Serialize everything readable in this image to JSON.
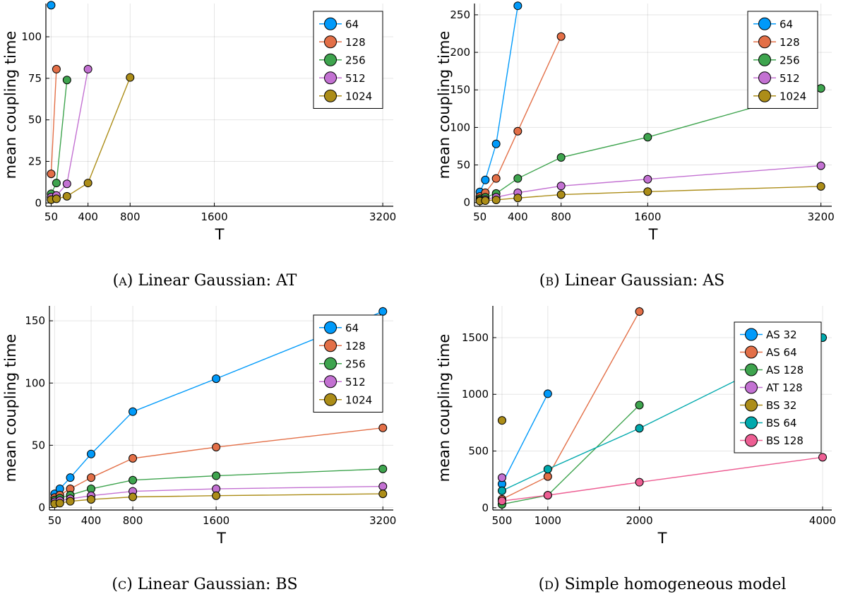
{
  "chart_data": [
    {
      "id": "a",
      "type": "line",
      "caption_letter": "A",
      "caption_text": "Linear Gaussian: AT",
      "xlabel": "T",
      "ylabel": "mean coupling time",
      "xticks": [
        50,
        400,
        800,
        1600,
        3200
      ],
      "xtick_labels": [
        "50",
        "400",
        "800",
        "1600",
        "3200"
      ],
      "yticks": [
        0,
        25,
        50,
        75,
        100
      ],
      "ytick_labels": [
        "0",
        "25",
        "50",
        "75",
        "100"
      ],
      "xlim": [
        0,
        3300
      ],
      "ylim": [
        -2,
        120
      ],
      "legend_position": "top-right",
      "series": [
        {
          "name": "64",
          "color": "#009AFA",
          "x": [
            50
          ],
          "y": [
            119
          ]
        },
        {
          "name": "128",
          "color": "#E36F47",
          "x": [
            50,
            100
          ],
          "y": [
            17.5,
            80.5
          ]
        },
        {
          "name": "256",
          "color": "#3EA44E",
          "x": [
            50,
            100,
            200
          ],
          "y": [
            5.5,
            12,
            74
          ]
        },
        {
          "name": "512",
          "color": "#C371D2",
          "x": [
            50,
            100,
            200,
            400
          ],
          "y": [
            3.5,
            4.5,
            11.5,
            80.5
          ]
        },
        {
          "name": "1024",
          "color": "#AC8D18",
          "x": [
            50,
            100,
            200,
            400,
            800
          ],
          "y": [
            2,
            2.5,
            4,
            12,
            75.5
          ]
        }
      ]
    },
    {
      "id": "b",
      "type": "line",
      "caption_letter": "B",
      "caption_text": "Linear Gaussian: AS",
      "xlabel": "T",
      "ylabel": "mean coupling time",
      "xticks": [
        50,
        400,
        800,
        1600,
        3200
      ],
      "xtick_labels": [
        "50",
        "400",
        "800",
        "1600",
        "3200"
      ],
      "yticks": [
        0,
        50,
        100,
        150,
        200,
        250
      ],
      "ytick_labels": [
        "0",
        "50",
        "100",
        "150",
        "200",
        "250"
      ],
      "xlim": [
        0,
        3300
      ],
      "ylim": [
        -5,
        265
      ],
      "legend_position": "top-right",
      "series": [
        {
          "name": "64",
          "color": "#009AFA",
          "x": [
            50,
            100,
            200,
            400
          ],
          "y": [
            14,
            30,
            78,
            262
          ]
        },
        {
          "name": "128",
          "color": "#E36F47",
          "x": [
            50,
            100,
            200,
            400,
            800
          ],
          "y": [
            8,
            13,
            32,
            95,
            221
          ]
        },
        {
          "name": "256",
          "color": "#3EA44E",
          "x": [
            50,
            100,
            200,
            400,
            800,
            1600,
            3200
          ],
          "y": [
            5,
            7,
            12,
            32,
            60,
            87,
            152
          ]
        },
        {
          "name": "512",
          "color": "#C371D2",
          "x": [
            50,
            100,
            200,
            400,
            800,
            1600,
            3200
          ],
          "y": [
            3,
            4,
            7,
            13,
            22,
            31,
            49
          ]
        },
        {
          "name": "1024",
          "color": "#AC8D18",
          "x": [
            50,
            100,
            200,
            400,
            800,
            1600,
            3200
          ],
          "y": [
            2,
            2.5,
            3.5,
            6,
            10.5,
            14.5,
            21.5
          ]
        }
      ]
    },
    {
      "id": "c",
      "type": "line",
      "caption_letter": "C",
      "caption_text": "Linear Gaussian: BS",
      "xlabel": "T",
      "ylabel": "mean coupling time",
      "xticks": [
        50,
        400,
        800,
        1600,
        3200
      ],
      "xtick_labels": [
        "50",
        "400",
        "800",
        "1600",
        "3200"
      ],
      "yticks": [
        0,
        50,
        100,
        150
      ],
      "ytick_labels": [
        "0",
        "50",
        "100",
        "150"
      ],
      "xlim": [
        0,
        3300
      ],
      "ylim": [
        -2,
        162
      ],
      "legend_position": "top-right",
      "series": [
        {
          "name": "64",
          "color": "#009AFA",
          "x": [
            50,
            100,
            200,
            400,
            800,
            1600,
            3200
          ],
          "y": [
            11,
            15,
            24,
            43,
            77,
            103.5,
            157.5
          ]
        },
        {
          "name": "128",
          "color": "#E36F47",
          "x": [
            50,
            100,
            200,
            400,
            800,
            1600,
            3200
          ],
          "y": [
            8,
            10,
            15,
            24,
            39.5,
            48.5,
            64
          ]
        },
        {
          "name": "256",
          "color": "#3EA44E",
          "x": [
            50,
            100,
            200,
            400,
            800,
            1600,
            3200
          ],
          "y": [
            6,
            7.5,
            10,
            15,
            22,
            25.5,
            31
          ]
        },
        {
          "name": "512",
          "color": "#C371D2",
          "x": [
            50,
            100,
            200,
            400,
            800,
            1600,
            3200
          ],
          "y": [
            4.5,
            5.5,
            7,
            9.5,
            13,
            15,
            17
          ]
        },
        {
          "name": "1024",
          "color": "#AC8D18",
          "x": [
            50,
            100,
            200,
            400,
            800,
            1600,
            3200
          ],
          "y": [
            3,
            3.5,
            5,
            6.5,
            8.5,
            9.5,
            11
          ]
        }
      ]
    },
    {
      "id": "d",
      "type": "line",
      "caption_letter": "D",
      "caption_text": "Simple homogeneous model",
      "xlabel": "T",
      "ylabel": "mean coupling time",
      "xticks": [
        500,
        1000,
        2000,
        4000
      ],
      "xtick_labels": [
        "500",
        "1000",
        "2000",
        "4000"
      ],
      "yticks": [
        0,
        500,
        1000,
        1500
      ],
      "ytick_labels": [
        "0",
        "500",
        "1000",
        "1500"
      ],
      "xlim": [
        400,
        4100
      ],
      "ylim": [
        -20,
        1780
      ],
      "legend_position": "top-right",
      "series": [
        {
          "name": "AS 32",
          "color": "#009AFA",
          "x": [
            500,
            1000
          ],
          "y": [
            210,
            1005
          ]
        },
        {
          "name": "AS 64",
          "color": "#E36F47",
          "x": [
            500,
            1000,
            2000
          ],
          "y": [
            75,
            275,
            1730
          ]
        },
        {
          "name": "AS 128",
          "color": "#3EA44E",
          "x": [
            500,
            1000,
            2000
          ],
          "y": [
            30,
            110,
            905
          ]
        },
        {
          "name": "AT 128",
          "color": "#C371D2",
          "x": [
            500
          ],
          "y": [
            265
          ]
        },
        {
          "name": "BS 32",
          "color": "#AC8D18",
          "x": [
            500
          ],
          "y": [
            770
          ]
        },
        {
          "name": "BS 64",
          "color": "#00A9AD",
          "x": [
            500,
            1000,
            2000,
            4000
          ],
          "y": [
            150,
            340,
            700,
            1500
          ]
        },
        {
          "name": "BS 128",
          "color": "#ED5E93",
          "x": [
            500,
            1000,
            2000,
            4000
          ],
          "y": [
            60,
            110,
            225,
            445
          ]
        }
      ]
    }
  ]
}
